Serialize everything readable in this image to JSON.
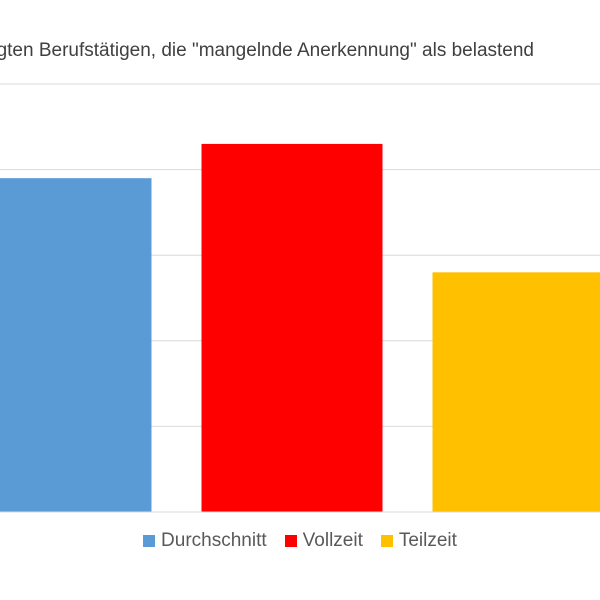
{
  "chart_data": {
    "type": "bar",
    "title": "agten Berufstätigen, die \"mangelnde Anerkennung\" als belastend",
    "categories": [
      "Durchschnitt",
      "Vollzeit",
      "Teilzeit"
    ],
    "values": [
      39,
      43,
      28
    ],
    "colors": [
      "#5b9bd5",
      "#ff0000",
      "#ffc000"
    ],
    "ylim": [
      0,
      50
    ],
    "grid": true,
    "gridline_values": [
      10,
      20,
      30,
      40,
      50
    ],
    "legend_position": "bottom",
    "legend": [
      "Durchschnitt",
      "Vollzeit",
      "Teilzeit"
    ],
    "xlabel": "",
    "ylabel": ""
  }
}
